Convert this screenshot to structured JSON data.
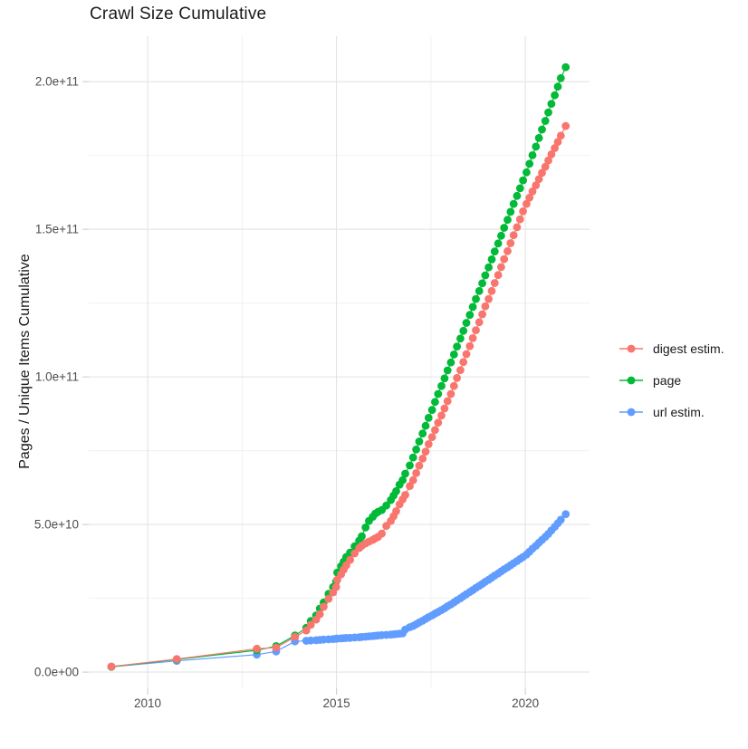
{
  "chart_data": {
    "type": "line",
    "title": "Crawl Size Cumulative",
    "y_axis_title": "Pages / Unique Items Cumulative",
    "x_axis_title": "",
    "legend_position": "right-center",
    "grid": "on",
    "background_color": "#FFFFFF",
    "x_unit": "year (decimal)",
    "y_unit": "pages / unique items, values in billions (1e9)",
    "xlim": [
      2008.44,
      2021.7
    ],
    "ylim": [
      -5.5,
      215.4
    ],
    "x_ticks": [
      {
        "v": 2010,
        "label": "2010"
      },
      {
        "v": 2015,
        "label": "2015"
      },
      {
        "v": 2020,
        "label": "2020"
      }
    ],
    "x_minor": [
      2012.5,
      2017.5
    ],
    "y_ticks": [
      {
        "v": 0,
        "label": "0.0e+00"
      },
      {
        "v": 50,
        "label": "5.0e+10"
      },
      {
        "v": 100,
        "label": "1.0e+11"
      },
      {
        "v": 150,
        "label": "1.5e+11"
      },
      {
        "v": 200,
        "label": "2.0e+11"
      }
    ],
    "y_minor": [
      25,
      75,
      125,
      175
    ],
    "x": [
      2009.04,
      2010.77,
      2012.89,
      2013.4,
      2013.9,
      2014.2,
      2014.32,
      2014.46,
      2014.56,
      2014.66,
      2014.79,
      2014.91,
      2014.99,
      2015.02,
      2015.12,
      2015.19,
      2015.26,
      2015.36,
      2015.48,
      2015.6,
      2015.67,
      2015.77,
      2015.86,
      2015.96,
      2016.03,
      2016.1,
      2016.2,
      2016.32,
      2016.44,
      2016.51,
      2016.58,
      2016.67,
      2016.75,
      2016.82,
      2016.94,
      2017.03,
      2017.11,
      2017.19,
      2017.28,
      2017.36,
      2017.44,
      2017.53,
      2017.61,
      2017.69,
      2017.78,
      2017.86,
      2017.94,
      2018.03,
      2018.11,
      2018.19,
      2018.28,
      2018.36,
      2018.44,
      2018.53,
      2018.61,
      2018.69,
      2018.78,
      2018.86,
      2018.94,
      2019.03,
      2019.11,
      2019.19,
      2019.28,
      2019.36,
      2019.44,
      2019.53,
      2019.61,
      2019.69,
      2019.78,
      2019.86,
      2019.94,
      2020.03,
      2020.11,
      2020.19,
      2020.28,
      2020.36,
      2020.44,
      2020.53,
      2020.61,
      2020.69,
      2020.78,
      2020.86,
      2020.94,
      2021.07
    ],
    "series": [
      {
        "name": "digest estim.",
        "color": "#F8766D",
        "values": [
          1.9,
          4.4,
          7.9,
          8.3,
          11.9,
          14.1,
          16.0,
          17.8,
          19.6,
          22.1,
          24.8,
          27.0,
          28.8,
          31.3,
          33.1,
          34.7,
          36.2,
          38.0,
          40.2,
          42.0,
          42.8,
          43.6,
          44.2,
          44.8,
          45.3,
          45.8,
          46.9,
          49.5,
          51.2,
          52.8,
          54.5,
          56.8,
          58.5,
          60.0,
          63.0,
          65.0,
          67.4,
          69.9,
          72.3,
          74.7,
          77.2,
          79.6,
          82.0,
          84.5,
          86.9,
          89.3,
          91.8,
          94.2,
          96.9,
          99.6,
          102.3,
          105.0,
          107.7,
          110.4,
          113.1,
          115.8,
          118.5,
          121.2,
          123.9,
          126.4,
          129.1,
          131.8,
          134.5,
          137.2,
          139.9,
          142.6,
          145.3,
          148.0,
          150.7,
          153.4,
          156.1,
          158.6,
          160.7,
          162.8,
          164.9,
          167.0,
          169.1,
          171.2,
          173.3,
          175.4,
          177.5,
          179.6,
          181.7,
          185.0
        ]
      },
      {
        "name": "page",
        "color": "#00BA38",
        "values": [
          1.8,
          4.3,
          7.4,
          8.8,
          12.4,
          15.0,
          17.3,
          19.2,
          21.5,
          23.6,
          26.5,
          28.8,
          30.7,
          33.7,
          35.9,
          37.4,
          39.0,
          40.5,
          42.6,
          44.5,
          46.0,
          49.0,
          51.2,
          52.6,
          53.7,
          54.3,
          54.9,
          56.4,
          58.3,
          59.8,
          61.3,
          63.5,
          65.0,
          67.2,
          70.0,
          72.7,
          75.4,
          78.1,
          80.8,
          83.4,
          86.1,
          88.8,
          91.5,
          94.2,
          96.9,
          99.5,
          102.2,
          104.9,
          107.6,
          110.3,
          113.0,
          115.6,
          118.3,
          121.0,
          123.7,
          126.4,
          129.1,
          131.7,
          134.4,
          137.1,
          139.8,
          142.5,
          145.2,
          147.8,
          150.5,
          153.2,
          155.9,
          158.6,
          161.3,
          163.9,
          166.6,
          169.3,
          172.2,
          175.1,
          178.0,
          180.9,
          183.8,
          186.7,
          189.6,
          192.5,
          195.4,
          198.3,
          201.2,
          204.9
        ]
      },
      {
        "name": "url estim.",
        "color": "#619CFF",
        "values": [
          1.8,
          3.8,
          5.9,
          7.0,
          10.4,
          10.6,
          10.7,
          10.8,
          10.9,
          11.0,
          11.1,
          11.2,
          11.3,
          11.35,
          11.4,
          11.5,
          11.55,
          11.6,
          11.7,
          11.8,
          11.9,
          12.0,
          12.1,
          12.2,
          12.3,
          12.4,
          12.5,
          12.6,
          12.7,
          12.8,
          12.9,
          13.0,
          13.1,
          14.4,
          15.2,
          15.6,
          16.2,
          16.8,
          17.4,
          18.0,
          18.6,
          19.2,
          19.8,
          20.4,
          21.0,
          21.6,
          22.3,
          22.9,
          23.6,
          24.3,
          25.0,
          25.7,
          26.4,
          27.1,
          27.8,
          28.5,
          29.2,
          29.9,
          30.6,
          31.3,
          32.0,
          32.7,
          33.4,
          34.1,
          34.8,
          35.5,
          36.2,
          36.9,
          37.6,
          38.3,
          39.0,
          39.8,
          40.8,
          41.8,
          42.8,
          43.8,
          44.8,
          45.8,
          46.8,
          48.0,
          49.2,
          50.4,
          51.6,
          53.5
        ]
      }
    ],
    "draw_order": [
      2,
      1,
      0
    ]
  }
}
